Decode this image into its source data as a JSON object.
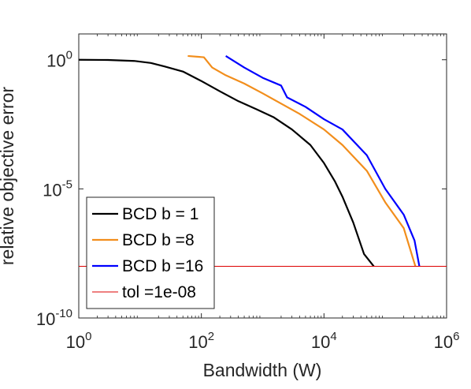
{
  "chart_data": {
    "type": "line",
    "xlabel": "Bandwidth (W)",
    "ylabel": "relative objective error",
    "x_scale": "log",
    "y_scale": "log",
    "xlim": [
      1,
      1000000
    ],
    "ylim": [
      1e-10,
      10
    ],
    "x_ticks": [
      {
        "base": "10",
        "exp": "0",
        "value": 1
      },
      {
        "base": "10",
        "exp": "2",
        "value": 100
      },
      {
        "base": "10",
        "exp": "4",
        "value": 10000
      },
      {
        "base": "10",
        "exp": "6",
        "value": 1000000
      }
    ],
    "y_ticks": [
      {
        "base": "10",
        "exp": "0",
        "value": 1
      },
      {
        "base": "10",
        "exp": "-5",
        "value": 1e-05
      },
      {
        "base": "10",
        "exp": "-10",
        "value": 1e-10
      }
    ],
    "grid": false,
    "legend_position": "bottom-left",
    "series": [
      {
        "name": "BCD b = 1",
        "color": "#000000",
        "points": [
          [
            1,
            1.0
          ],
          [
            3,
            0.98
          ],
          [
            8,
            0.9
          ],
          [
            15,
            0.75
          ],
          [
            25,
            0.55
          ],
          [
            50,
            0.35
          ],
          [
            100,
            0.15
          ],
          [
            200,
            0.06
          ],
          [
            400,
            0.025
          ],
          [
            800,
            0.012
          ],
          [
            1500,
            0.006
          ],
          [
            3000,
            0.002
          ],
          [
            6000,
            0.0005
          ],
          [
            10000,
            0.0001
          ],
          [
            15000,
            2e-05
          ],
          [
            20000,
            5e-06
          ],
          [
            30000,
            5e-07
          ],
          [
            45000,
            3e-08
          ],
          [
            65000,
            1e-08
          ]
        ]
      },
      {
        "name": "BCD b =8",
        "color": "#f28e1c",
        "points": [
          [
            60,
            1.4
          ],
          [
            110,
            1.25
          ],
          [
            150,
            0.5
          ],
          [
            250,
            0.25
          ],
          [
            500,
            0.12
          ],
          [
            1000,
            0.05
          ],
          [
            2000,
            0.02
          ],
          [
            4000,
            0.008
          ],
          [
            10000,
            0.002
          ],
          [
            20000,
            0.0005
          ],
          [
            50000,
            5e-05
          ],
          [
            100000,
            3e-06
          ],
          [
            200000,
            3e-07
          ],
          [
            310000,
            1e-08
          ]
        ]
      },
      {
        "name": "BCD b =16",
        "color": "#0000ff",
        "points": [
          [
            250,
            1.4
          ],
          [
            500,
            0.5
          ],
          [
            1000,
            0.2
          ],
          [
            2000,
            0.1
          ],
          [
            2500,
            0.035
          ],
          [
            5000,
            0.015
          ],
          [
            10000,
            0.005
          ],
          [
            20000,
            0.002
          ],
          [
            50000,
            0.0002
          ],
          [
            100000,
            1e-05
          ],
          [
            200000,
            1e-06
          ],
          [
            300000,
            1e-07
          ],
          [
            360000,
            1e-08
          ]
        ]
      },
      {
        "name": "tol =1e-08",
        "color": "#dd0000",
        "points": [
          [
            1,
            1e-08
          ],
          [
            1000000,
            1e-08
          ]
        ]
      }
    ]
  }
}
